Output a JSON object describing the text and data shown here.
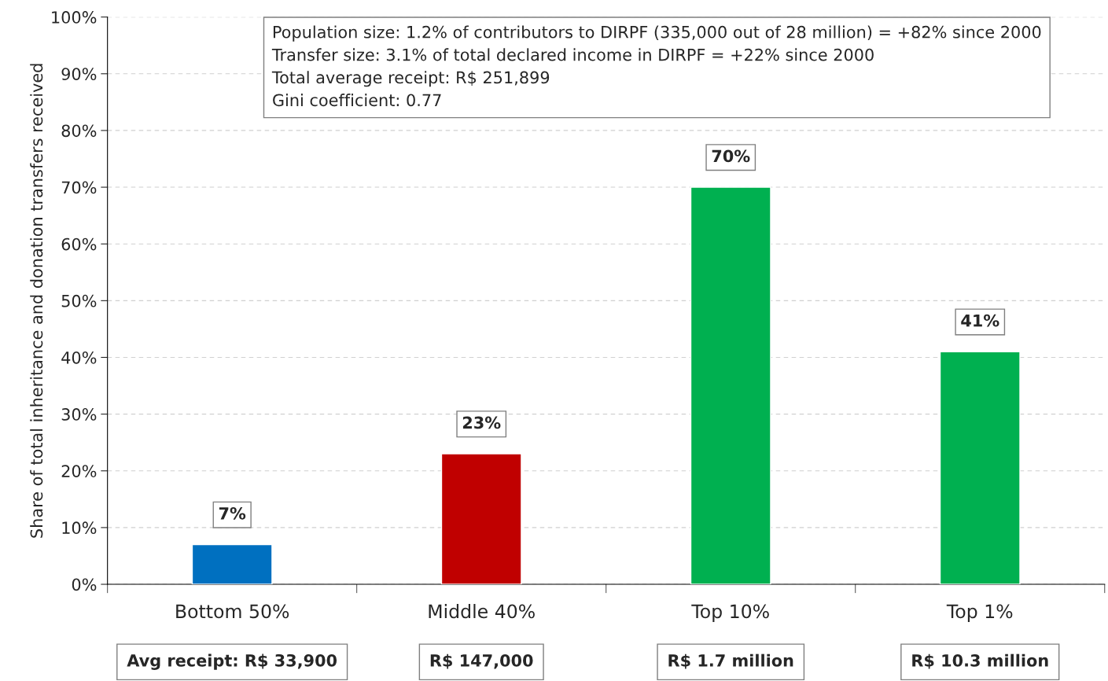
{
  "chart_data": {
    "type": "bar",
    "ylabel": "Share of total inheritance and donation transfers received",
    "categories": [
      "Bottom 50%",
      "Middle 40%",
      "Top 10%",
      "Top 1%"
    ],
    "values": [
      7,
      23,
      70,
      41
    ],
    "value_labels": [
      "7%",
      "23%",
      "70%",
      "41%"
    ],
    "colors": [
      "#0070c0",
      "#c00000",
      "#00b050",
      "#00b050"
    ],
    "ylim": [
      0,
      100
    ],
    "yticks": [
      {
        "value": 0,
        "label": "0%"
      },
      {
        "value": 10,
        "label": "10%"
      },
      {
        "value": 20,
        "label": "20%"
      },
      {
        "value": 30,
        "label": "30%"
      },
      {
        "value": 40,
        "label": "40%"
      },
      {
        "value": 50,
        "label": "50%"
      },
      {
        "value": 60,
        "label": "60%"
      },
      {
        "value": 70,
        "label": "70%"
      },
      {
        "value": 80,
        "label": "80%"
      },
      {
        "value": 90,
        "label": "90%"
      },
      {
        "value": 100,
        "label": "100%"
      }
    ],
    "grid": "y",
    "annotations": [
      "Population size: 1.2% of contributors to DIRPF (335,000 out of 28 million) = +82% since 2000",
      "Transfer size: 3.1% of total declared income in DIRPF = +22% since 2000",
      "Total average receipt: R$ 251,899",
      "Gini coefficient: 0.77",
      "Avg receipt: R$ 33,900",
      "R$ 147,000",
      "R$ 1.7 million",
      "R$ 10.3 million"
    ]
  }
}
